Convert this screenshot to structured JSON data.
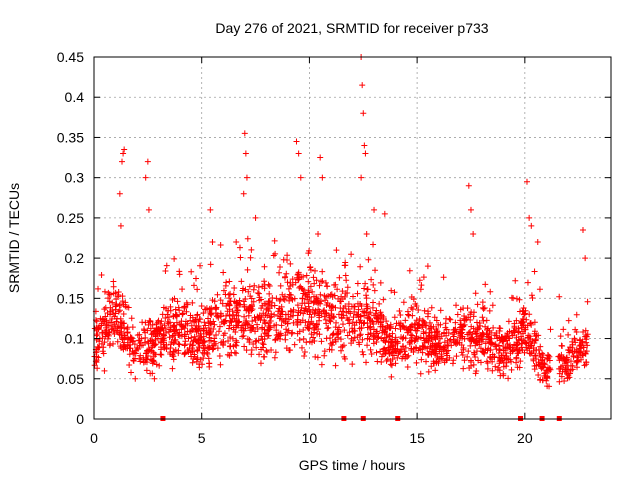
{
  "chart_data": {
    "type": "scatter",
    "title": "Day 276 of 2021, SRMTID for receiver p733",
    "xlabel": "GPS time / hours",
    "ylabel": "SRMTID / TECUs",
    "xlim": [
      0,
      24
    ],
    "ylim": [
      0,
      0.45
    ],
    "x_ticks": [
      "0",
      "5",
      "10",
      "15",
      "20"
    ],
    "x_tick_values": [
      0,
      5,
      10,
      15,
      20
    ],
    "y_ticks": [
      "0",
      "0.05",
      "0.1",
      "0.15",
      "0.2",
      "0.25",
      "0.3",
      "0.35",
      "0.4",
      "0.45"
    ],
    "y_tick_values": [
      0,
      0.05,
      0.1,
      0.15,
      0.2,
      0.25,
      0.3,
      0.35,
      0.4,
      0.45
    ],
    "grid": true,
    "marker": "+",
    "color": "#ff0000",
    "series": [
      {
        "name": "SRMTID",
        "approximate": true,
        "profile_hours": [
          0,
          1,
          2,
          3,
          4,
          5,
          6,
          7,
          8,
          9,
          10,
          11,
          12,
          13,
          14,
          15,
          16,
          17,
          18,
          19,
          20,
          21,
          22,
          23
        ],
        "typical_values": [
          0.09,
          0.13,
          0.08,
          0.1,
          0.11,
          0.1,
          0.12,
          0.13,
          0.12,
          0.14,
          0.14,
          0.12,
          0.13,
          0.11,
          0.09,
          0.11,
          0.09,
          0.1,
          0.1,
          0.08,
          0.11,
          0.06,
          0.07,
          0.09
        ],
        "x": [
          1.2,
          1.3,
          1.35,
          1.4,
          1.25,
          2.5,
          2.4,
          2.55,
          5.4,
          5.5,
          6.6,
          7.0,
          7.05,
          6.95,
          7.1,
          7.5,
          9.4,
          9.5,
          9.6,
          10.5,
          10.6,
          10.4,
          12.4,
          12.45,
          12.5,
          12.55,
          12.6,
          12.4,
          13.0,
          13.5,
          15.5,
          17.4,
          17.5,
          17.6,
          20.1,
          20.2,
          20.3,
          20.6,
          22.7,
          22.8
        ],
        "y": [
          0.28,
          0.32,
          0.33,
          0.335,
          0.24,
          0.32,
          0.3,
          0.26,
          0.26,
          0.22,
          0.22,
          0.355,
          0.33,
          0.28,
          0.3,
          0.25,
          0.345,
          0.33,
          0.3,
          0.325,
          0.3,
          0.23,
          0.45,
          0.415,
          0.38,
          0.34,
          0.33,
          0.3,
          0.26,
          0.255,
          0.19,
          0.29,
          0.26,
          0.23,
          0.295,
          0.25,
          0.24,
          0.22,
          0.235,
          0.2
        ]
      },
      {
        "name": "zero markers",
        "x": [
          3.2,
          11.6,
          12.5,
          14.1,
          19.8,
          20.8,
          21.6
        ],
        "y": [
          0,
          0,
          0,
          0,
          0,
          0,
          0
        ]
      }
    ]
  }
}
